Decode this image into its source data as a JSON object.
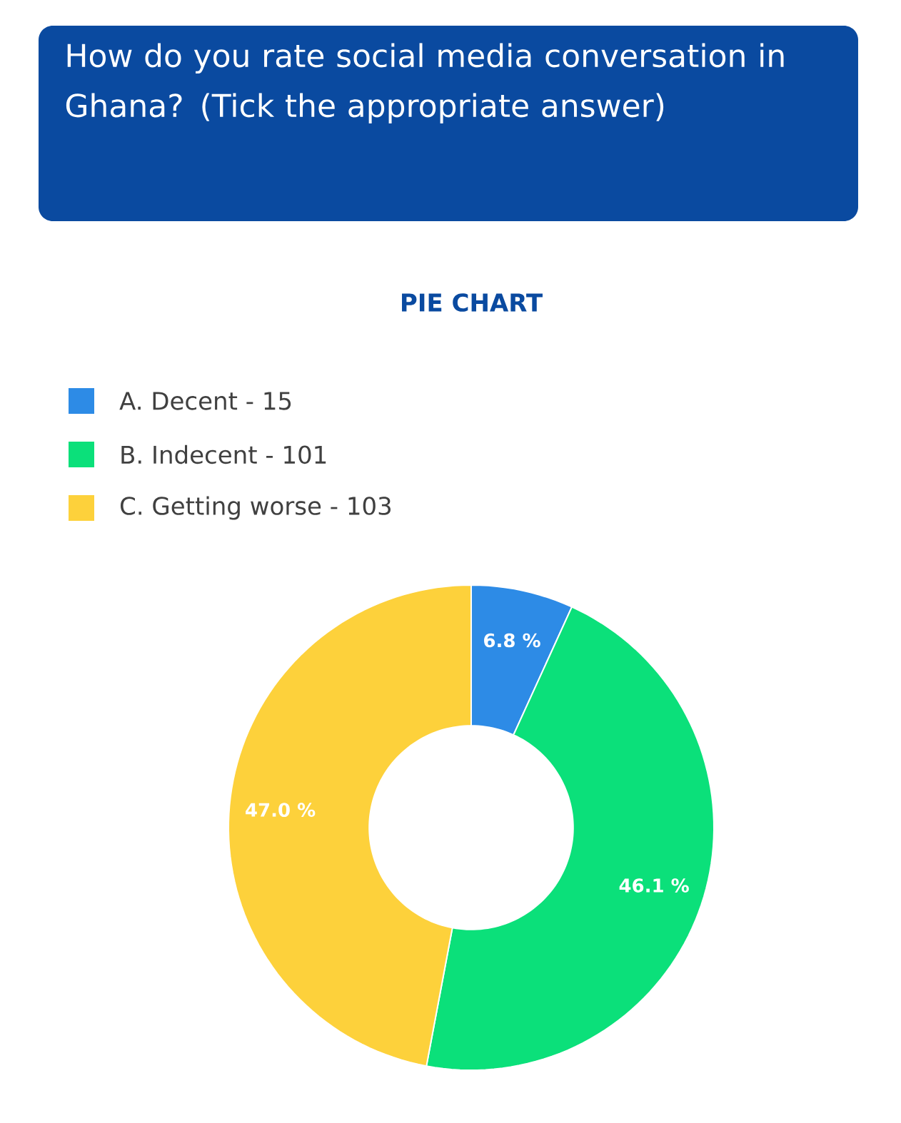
{
  "chart_data": {
    "type": "donut",
    "title": "How do you rate social media conversation in Ghana? (Tick the appropriate answer)",
    "subtitle": "PIE CHART",
    "categories": [
      "A. Decent - 15",
      "B. Indecent - 101",
      "C. Getting worse - 103"
    ],
    "values": [
      6.8,
      46.1,
      47.0
    ],
    "colors": [
      "#2d8be6",
      "#0be07a",
      "#fdd13b"
    ],
    "value_labels": [
      "6.8 %",
      "46.1 %",
      "47.0 %"
    ],
    "legend": "top left"
  }
}
